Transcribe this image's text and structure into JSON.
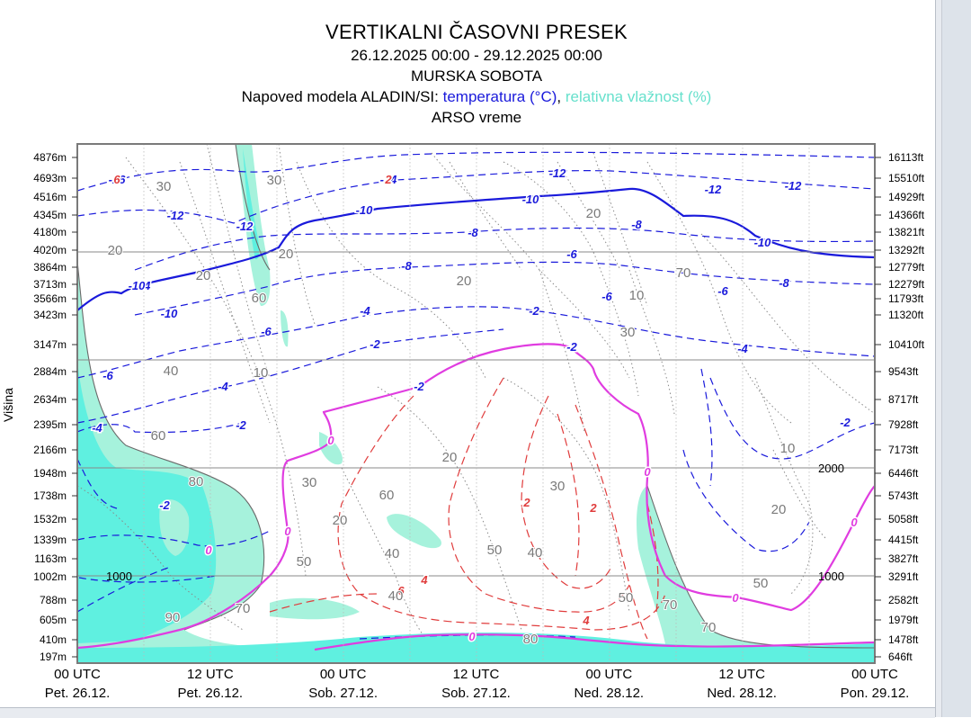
{
  "title": "VERTIKALNI ČASOVNI PRESEK",
  "period": "26.12.2025 00:00 - 29.12.2025 00:00",
  "location": "MURSKA SOBOTA",
  "model_prefix": "Napoved modela ALADIN/SI: ",
  "temp_label": "temperatura (°C)",
  "separator": ", ",
  "rh_label": "relativna vlažnost (%)",
  "source": "ARSO vreme",
  "colors": {
    "temperature": "#1a1adb",
    "humidity": "#66e0cc",
    "zero_isotherm": "#e03ce0",
    "positive_temp": "#e03c3c",
    "rh_fill_high": "#5ff0e0",
    "rh_fill_mid": "#a6f2dc"
  },
  "chart_data": {
    "type": "contour",
    "ylabel": "Višina",
    "y_left_labels": [
      "4876m",
      "4693m",
      "4516m",
      "4345m",
      "4180m",
      "4020m",
      "3864m",
      "3713m",
      "3566m",
      "3423m",
      "3147m",
      "2884m",
      "2634m",
      "2395m",
      "2166m",
      "1948m",
      "1738m",
      "1532m",
      "1339m",
      "1163m",
      "1002m",
      "788m",
      "605m",
      "410m",
      "197m"
    ],
    "y_right_labels": [
      "16113ft",
      "15510ft",
      "14929ft",
      "14366ft",
      "13821ft",
      "13292ft",
      "12779ft",
      "12279ft",
      "11793ft",
      "11320ft",
      "10410ft",
      "9543ft",
      "8717ft",
      "7928ft",
      "7173ft",
      "6446ft",
      "5743ft",
      "5058ft",
      "4415ft",
      "3827ft",
      "3291ft",
      "2582ft",
      "1979ft",
      "1478ft",
      "646ft"
    ],
    "x_labels": [
      {
        "time": "00 UTC",
        "day": "Pet. 26.12."
      },
      {
        "time": "12 UTC",
        "day": "Pet. 26.12."
      },
      {
        "time": "00 UTC",
        "day": "Sob. 27.12."
      },
      {
        "time": "12 UTC",
        "day": "Sob. 27.12."
      },
      {
        "time": "00 UTC",
        "day": "Ned. 28.12."
      },
      {
        "time": "12 UTC",
        "day": "Ned. 28.12."
      },
      {
        "time": "00 UTC",
        "day": "Pon. 29.12."
      }
    ],
    "x_range_hours": [
      0,
      72
    ],
    "height_lines_m": [
      "1000",
      "2000"
    ],
    "temperature_labels": [
      "-16",
      "-14",
      "-12",
      "-12",
      "-12",
      "-12",
      "-12",
      "-14",
      "-10",
      "-10",
      "-10",
      "-10",
      "-10",
      "-8",
      "-8",
      "-8",
      "-8",
      "-6",
      "-6",
      "-6",
      "-6",
      "-6",
      "-4",
      "-4",
      "-4",
      "-4",
      "-2",
      "-2",
      "-2",
      "-2",
      "-2",
      "-2",
      "-2",
      "0",
      "0",
      "0",
      "0",
      "0",
      "0",
      "0",
      "2",
      "2",
      "4",
      "4",
      "6",
      "6",
      "2"
    ],
    "humidity_labels": [
      "30",
      "20",
      "30",
      "20",
      "20",
      "20",
      "20",
      "10",
      "70",
      "70",
      "60",
      "40",
      "10",
      "40",
      "60",
      "80",
      "90",
      "70",
      "30",
      "20",
      "60",
      "30",
      "20",
      "40",
      "50",
      "40",
      "30",
      "50",
      "50",
      "70",
      "20",
      "10",
      "50",
      "80"
    ]
  }
}
